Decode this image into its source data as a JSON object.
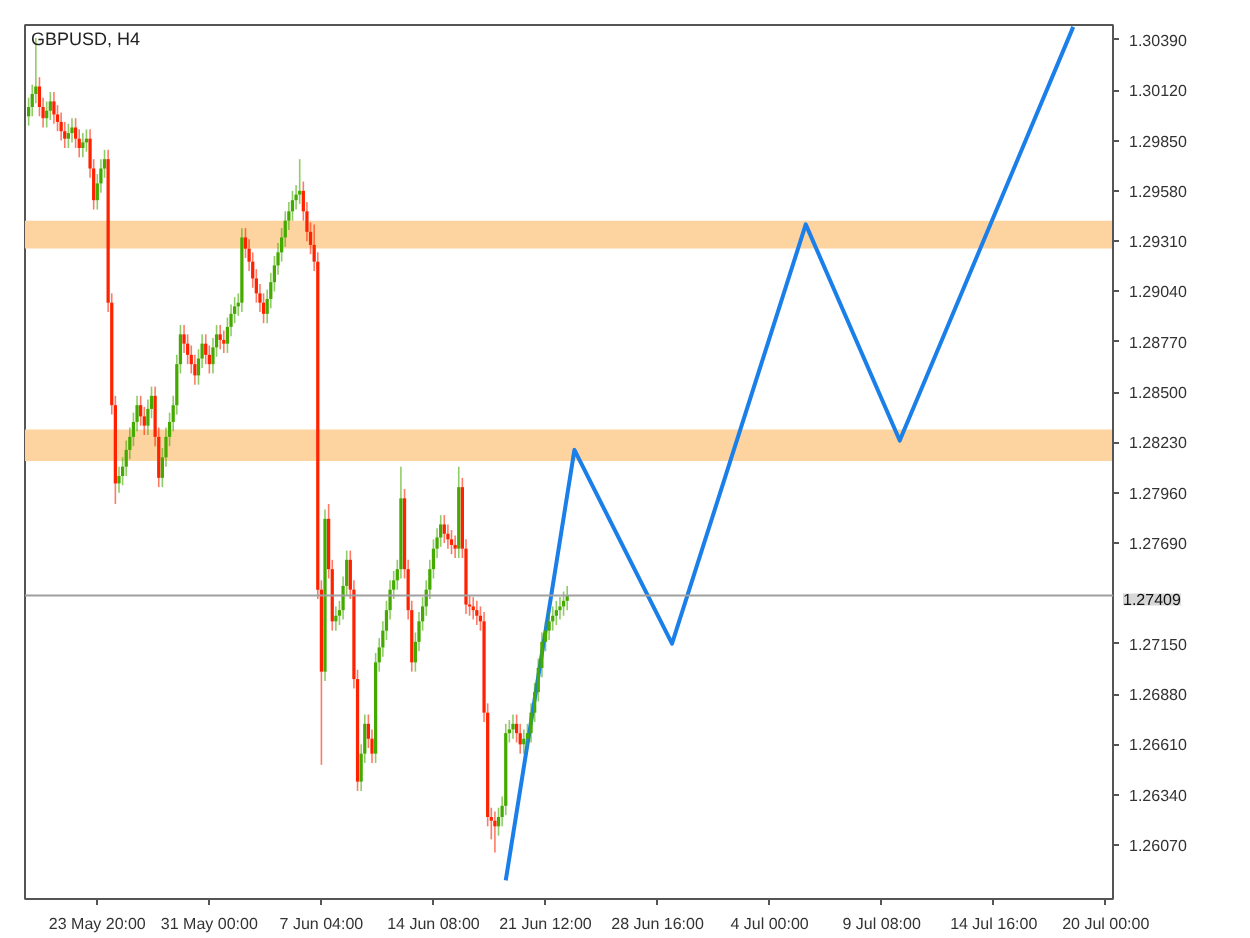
{
  "chart_data": {
    "type": "candlestick",
    "title": "GBPUSD, H4",
    "categories": [
      null,
      null,
      null,
      null,
      null,
      null,
      null,
      null,
      null,
      null,
      null,
      null,
      null,
      null,
      null,
      null,
      null,
      null,
      null,
      "23 May 20:00",
      null,
      null,
      null,
      null,
      null,
      null,
      null,
      null,
      null,
      null,
      null,
      null,
      null,
      null,
      null,
      null,
      null,
      null,
      null,
      null,
      null,
      null,
      null,
      null,
      null,
      null,
      null,
      null,
      null,
      null,
      "31 May 00:00",
      null,
      null,
      null,
      null,
      null,
      null,
      null,
      null,
      null,
      null,
      null,
      null,
      null,
      null,
      null,
      null,
      null,
      null,
      null,
      null,
      null,
      null,
      null,
      null,
      null,
      null,
      null,
      null,
      null,
      null,
      "7 Jun 04:00",
      null,
      null,
      null,
      null,
      null,
      null,
      null,
      null,
      null,
      null,
      null,
      null,
      null,
      null,
      null,
      null,
      null,
      null,
      null,
      null,
      null,
      null,
      null,
      null,
      null,
      null,
      null,
      null,
      null,
      null,
      "14 Jun 08:00",
      null,
      null,
      null,
      null,
      null,
      null,
      null,
      null,
      null,
      null,
      null,
      null,
      null,
      null,
      null,
      null,
      null,
      null,
      null,
      null,
      null,
      null,
      null,
      null,
      null,
      null,
      null,
      null,
      null,
      null,
      "21 Jun 12:00",
      null,
      null,
      null,
      null,
      null,
      null,
      null,
      null,
      null,
      null,
      null,
      null,
      null,
      null,
      null,
      null,
      null,
      null,
      null,
      null,
      null,
      null,
      null,
      null,
      null,
      null,
      null,
      null,
      null,
      null,
      "28 Jun 16:00",
      null,
      null,
      null,
      null,
      null,
      null,
      null,
      null,
      null,
      null,
      null,
      null,
      null,
      null,
      null,
      null,
      null,
      null,
      null,
      null,
      null,
      null,
      null,
      null,
      null,
      null,
      null,
      null,
      null,
      null,
      "4 Jul 00:00",
      null,
      null,
      null,
      null,
      null,
      null,
      null,
      null,
      null,
      null,
      null,
      null,
      null,
      null,
      null,
      null,
      null,
      null,
      null,
      null,
      null,
      null,
      null,
      null,
      null,
      null,
      null,
      null,
      null,
      null,
      "9 Jul 08:00",
      null,
      null,
      null,
      null,
      null,
      null,
      null,
      null,
      null,
      null,
      null,
      null,
      null,
      null,
      null,
      null,
      null,
      null,
      null,
      null,
      null,
      null,
      null,
      null,
      null,
      null,
      null,
      null,
      null,
      null,
      "14 Jul 16:00",
      null,
      null,
      null,
      null,
      null,
      null,
      null,
      null,
      null,
      null,
      null,
      null,
      null,
      null,
      null,
      null,
      null,
      null,
      null,
      null,
      null,
      null,
      null,
      null,
      null,
      null,
      null,
      null,
      null,
      null,
      "20 Jul 00:00",
      null
    ],
    "ohlc": [
      [
        1.2998,
        1.3008,
        1.2993,
        1.3003
      ],
      [
        1.3003,
        1.3015,
        1.2998,
        1.301
      ],
      [
        1.301,
        1.304,
        1.3005,
        1.3014
      ],
      [
        1.3014,
        1.3019,
        1.2998,
        1.3003
      ],
      [
        1.3003,
        1.3008,
        1.2992,
        1.2997
      ],
      [
        1.2997,
        1.3006,
        1.2992,
        1.3001
      ],
      [
        1.3001,
        1.3011,
        1.2996,
        1.3006
      ],
      [
        1.3006,
        1.3011,
        1.2994,
        1.2999
      ],
      [
        1.2999,
        1.3004,
        1.299,
        1.2995
      ],
      [
        1.2995,
        1.3,
        1.2985,
        1.299
      ],
      [
        1.299,
        1.2995,
        1.2981,
        1.2986
      ],
      [
        1.2986,
        1.2994,
        1.2981,
        1.2989
      ],
      [
        1.2989,
        1.2997,
        1.2984,
        1.2992
      ],
      [
        1.2992,
        1.2997,
        1.2981,
        1.2986
      ],
      [
        1.2986,
        1.2991,
        1.2976,
        1.2981
      ],
      [
        1.2981,
        1.2989,
        1.2976,
        1.2984
      ],
      [
        1.2984,
        1.2991,
        1.2979,
        1.2986
      ],
      [
        1.2986,
        1.2991,
        1.2965,
        1.297
      ],
      [
        1.297,
        1.2975,
        1.2948,
        1.2953
      ],
      [
        1.2953,
        1.2967,
        1.2948,
        1.2962
      ],
      [
        1.2962,
        1.2975,
        1.2957,
        1.297
      ],
      [
        1.297,
        1.298,
        1.2965,
        1.2975
      ],
      [
        1.2975,
        1.298,
        1.2893,
        1.2898
      ],
      [
        1.2898,
        1.2903,
        1.2838,
        1.2843
      ],
      [
        1.2843,
        1.2848,
        1.279,
        1.2801
      ],
      [
        1.2801,
        1.281,
        1.2796,
        1.2805
      ],
      [
        1.2805,
        1.2815,
        1.28,
        1.281
      ],
      [
        1.281,
        1.2824,
        1.2805,
        1.2819
      ],
      [
        1.2819,
        1.2831,
        1.2814,
        1.2826
      ],
      [
        1.2826,
        1.2839,
        1.2821,
        1.2834
      ],
      [
        1.2834,
        1.2848,
        1.2829,
        1.2843
      ],
      [
        1.2843,
        1.2848,
        1.2832,
        1.2837
      ],
      [
        1.2837,
        1.2842,
        1.2827,
        1.2832
      ],
      [
        1.2832,
        1.2846,
        1.2827,
        1.2841
      ],
      [
        1.2841,
        1.2853,
        1.2836,
        1.2848
      ],
      [
        1.2848,
        1.2853,
        1.2821,
        1.2826
      ],
      [
        1.2826,
        1.2831,
        1.2799,
        1.2804
      ],
      [
        1.2804,
        1.282,
        1.2799,
        1.2815
      ],
      [
        1.2815,
        1.2831,
        1.281,
        1.2826
      ],
      [
        1.2826,
        1.2839,
        1.2821,
        1.2834
      ],
      [
        1.2834,
        1.2848,
        1.2829,
        1.2843
      ],
      [
        1.2843,
        1.287,
        1.2838,
        1.2865
      ],
      [
        1.2865,
        1.2886,
        1.286,
        1.2881
      ],
      [
        1.2881,
        1.2886,
        1.2871,
        1.2876
      ],
      [
        1.2876,
        1.2881,
        1.2865,
        1.287
      ],
      [
        1.287,
        1.2875,
        1.286,
        1.2865
      ],
      [
        1.2865,
        1.287,
        1.2854,
        1.2859
      ],
      [
        1.2859,
        1.2873,
        1.2854,
        1.2868
      ],
      [
        1.2868,
        1.2881,
        1.2863,
        1.2876
      ],
      [
        1.2876,
        1.2881,
        1.2865,
        1.287
      ],
      [
        1.287,
        1.2875,
        1.286,
        1.2865
      ],
      [
        1.2865,
        1.2879,
        1.286,
        1.2874
      ],
      [
        1.2874,
        1.2886,
        1.2869,
        1.2881
      ],
      [
        1.2881,
        1.2886,
        1.2873,
        1.2878
      ],
      [
        1.2878,
        1.2883,
        1.2871,
        1.2876
      ],
      [
        1.2876,
        1.289,
        1.2871,
        1.2885
      ],
      [
        1.2885,
        1.2897,
        1.288,
        1.2892
      ],
      [
        1.2892,
        1.2901,
        1.2887,
        1.2896
      ],
      [
        1.2896,
        1.2903,
        1.2891,
        1.2898
      ],
      [
        1.2898,
        1.2938,
        1.2893,
        1.2933
      ],
      [
        1.2933,
        1.2938,
        1.2922,
        1.2927
      ],
      [
        1.2927,
        1.2932,
        1.2915,
        1.292
      ],
      [
        1.292,
        1.2925,
        1.2906,
        1.2911
      ],
      [
        1.2911,
        1.2916,
        1.2898,
        1.2903
      ],
      [
        1.2903,
        1.2908,
        1.2893,
        1.2898
      ],
      [
        1.2898,
        1.2903,
        1.2887,
        1.2892
      ],
      [
        1.2892,
        1.2905,
        1.2887,
        1.29
      ],
      [
        1.29,
        1.2914,
        1.2895,
        1.2909
      ],
      [
        1.2909,
        1.2923,
        1.2904,
        1.2918
      ],
      [
        1.2918,
        1.293,
        1.2913,
        1.2925
      ],
      [
        1.2925,
        1.2938,
        1.292,
        1.2933
      ],
      [
        1.2933,
        1.2947,
        1.2928,
        1.2942
      ],
      [
        1.2942,
        1.2952,
        1.2937,
        1.2947
      ],
      [
        1.2947,
        1.2958,
        1.2942,
        1.2953
      ],
      [
        1.2953,
        1.2961,
        1.2948,
        1.2956
      ],
      [
        1.2956,
        1.2975,
        1.2951,
        1.2958
      ],
      [
        1.2958,
        1.2963,
        1.2942,
        1.2947
      ],
      [
        1.2947,
        1.2952,
        1.2931,
        1.2936
      ],
      [
        1.2936,
        1.2941,
        1.2924,
        1.2929
      ],
      [
        1.2929,
        1.294,
        1.2915,
        1.292
      ],
      [
        1.292,
        1.2925,
        1.2739,
        1.2744
      ],
      [
        1.2744,
        1.2749,
        1.265,
        1.27
      ],
      [
        1.27,
        1.2787,
        1.2695,
        1.2782
      ],
      [
        1.2782,
        1.279,
        1.275,
        1.2755
      ],
      [
        1.2755,
        1.276,
        1.2722,
        1.2727
      ],
      [
        1.2727,
        1.2735,
        1.2722,
        1.273
      ],
      [
        1.273,
        1.2738,
        1.2725,
        1.2733
      ],
      [
        1.2733,
        1.2751,
        1.2728,
        1.2746
      ],
      [
        1.2746,
        1.2765,
        1.2741,
        1.276
      ],
      [
        1.276,
        1.2765,
        1.2739,
        1.2744
      ],
      [
        1.2744,
        1.2749,
        1.2691,
        1.2696
      ],
      [
        1.2696,
        1.2701,
        1.2636,
        1.2641
      ],
      [
        1.2641,
        1.2661,
        1.2636,
        1.2656
      ],
      [
        1.2656,
        1.2677,
        1.2651,
        1.2672
      ],
      [
        1.2672,
        1.2677,
        1.2659,
        1.2664
      ],
      [
        1.2664,
        1.2669,
        1.2651,
        1.2656
      ],
      [
        1.2656,
        1.271,
        1.2651,
        1.2705
      ],
      [
        1.2705,
        1.2718,
        1.27,
        1.2713
      ],
      [
        1.2713,
        1.2727,
        1.2708,
        1.2722
      ],
      [
        1.2722,
        1.2738,
        1.2717,
        1.2733
      ],
      [
        1.2733,
        1.2749,
        1.2728,
        1.2744
      ],
      [
        1.2744,
        1.2754,
        1.2739,
        1.2749
      ],
      [
        1.2749,
        1.276,
        1.2744,
        1.2755
      ],
      [
        1.2755,
        1.281,
        1.275,
        1.2793
      ],
      [
        1.2793,
        1.2798,
        1.275,
        1.2755
      ],
      [
        1.2755,
        1.276,
        1.2728,
        1.2733
      ],
      [
        1.2733,
        1.2738,
        1.27,
        1.2705
      ],
      [
        1.2705,
        1.2721,
        1.27,
        1.2716
      ],
      [
        1.2716,
        1.2732,
        1.2711,
        1.2727
      ],
      [
        1.2727,
        1.274,
        1.2722,
        1.2735
      ],
      [
        1.2735,
        1.2749,
        1.273,
        1.2744
      ],
      [
        1.2744,
        1.276,
        1.2739,
        1.2755
      ],
      [
        1.2755,
        1.2771,
        1.275,
        1.2766
      ],
      [
        1.2766,
        1.2777,
        1.2761,
        1.2772
      ],
      [
        1.2772,
        1.2784,
        1.2767,
        1.2779
      ],
      [
        1.2779,
        1.2784,
        1.2769,
        1.2774
      ],
      [
        1.2774,
        1.2779,
        1.2766,
        1.2771
      ],
      [
        1.2771,
        1.2776,
        1.2763,
        1.2768
      ],
      [
        1.2768,
        1.2773,
        1.2761,
        1.2766
      ],
      [
        1.2766,
        1.281,
        1.2761,
        1.2799
      ],
      [
        1.2799,
        1.2804,
        1.2761,
        1.2766
      ],
      [
        1.2766,
        1.2771,
        1.2731,
        1.2736
      ],
      [
        1.2736,
        1.2741,
        1.273,
        1.2735
      ],
      [
        1.2735,
        1.274,
        1.2728,
        1.2733
      ],
      [
        1.2733,
        1.2738,
        1.2725,
        1.273
      ],
      [
        1.273,
        1.2735,
        1.2722,
        1.2727
      ],
      [
        1.2727,
        1.2732,
        1.2673,
        1.2678
      ],
      [
        1.2678,
        1.2683,
        1.2617,
        1.2622
      ],
      [
        1.2622,
        1.2627,
        1.261,
        1.262
      ],
      [
        1.262,
        1.2625,
        1.2603,
        1.2617
      ],
      [
        1.2617,
        1.2627,
        1.2612,
        1.2622
      ],
      [
        1.2622,
        1.2633,
        1.2617,
        1.2628
      ],
      [
        1.2628,
        1.2672,
        1.2623,
        1.2667
      ],
      [
        1.2667,
        1.2674,
        1.2662,
        1.2669
      ],
      [
        1.2669,
        1.2677,
        1.2664,
        1.2672
      ],
      [
        1.2672,
        1.2677,
        1.2662,
        1.2667
      ],
      [
        1.2667,
        1.2672,
        1.2656,
        1.2661
      ],
      [
        1.2661,
        1.2669,
        1.2656,
        1.2664
      ],
      [
        1.2664,
        1.2672,
        1.2659,
        1.2667
      ],
      [
        1.2667,
        1.2683,
        1.2662,
        1.2678
      ],
      [
        1.2678,
        1.2694,
        1.2673,
        1.2689
      ],
      [
        1.2689,
        1.2707,
        1.2684,
        1.2702
      ],
      [
        1.2702,
        1.2721,
        1.2697,
        1.2716
      ],
      [
        1.2716,
        1.2727,
        1.2711,
        1.2722
      ],
      [
        1.2722,
        1.2732,
        1.2717,
        1.2727
      ],
      [
        1.2727,
        1.2735,
        1.2722,
        1.273
      ],
      [
        1.273,
        1.2738,
        1.2725,
        1.2733
      ],
      [
        1.2733,
        1.274,
        1.2728,
        1.2735
      ],
      [
        1.2735,
        1.2743,
        1.273,
        1.2738
      ],
      [
        1.2738,
        1.2746,
        1.2733,
        1.2741
      ],
      null,
      null,
      null,
      null,
      null,
      null,
      null,
      null,
      null,
      null,
      null,
      null,
      null,
      null,
      null,
      null,
      null,
      null,
      null,
      null,
      null,
      null,
      null,
      null,
      null,
      null,
      null,
      null,
      null,
      null,
      null,
      null,
      null,
      null,
      null,
      null,
      null,
      null,
      null,
      null,
      null,
      null,
      null,
      null,
      null,
      null,
      null,
      null,
      null,
      null,
      null,
      null,
      null,
      null,
      null,
      null,
      null,
      null,
      null,
      null,
      null,
      null,
      null,
      null,
      null,
      null,
      null,
      null,
      null,
      null,
      null,
      null,
      null,
      null,
      null,
      null,
      null,
      null,
      null,
      null,
      null,
      null,
      null,
      null,
      null,
      null,
      null,
      null,
      null,
      null,
      null,
      null,
      null,
      null,
      null,
      null,
      null,
      null,
      null,
      null,
      null,
      null,
      null,
      null,
      null,
      null,
      null,
      null,
      null,
      null,
      null,
      null,
      null,
      null,
      null,
      null,
      null,
      null,
      null,
      null,
      null,
      null,
      null,
      null,
      null,
      null,
      null,
      null,
      null,
      null,
      null,
      null,
      null,
      null,
      null,
      null,
      null,
      null,
      null,
      null,
      null,
      null,
      null,
      null,
      null,
      null,
      null,
      null,
      null,
      null
    ],
    "colors": [
      "#44aa00",
      "#44aa00",
      "#44aa00",
      "#ff2200",
      "#ff2200",
      "#44aa00",
      "#44aa00",
      "#ff2200",
      "#ff2200",
      "#ff2200",
      "#ff2200",
      "#44aa00",
      "#44aa00",
      "#ff2200",
      "#ff2200",
      "#44aa00",
      "#44aa00",
      "#ff2200",
      "#ff2200",
      "#44aa00",
      "#44aa00",
      "#44aa00",
      "#ff2200",
      "#ff2200",
      "#ff2200",
      "#44aa00",
      "#44aa00",
      "#44aa00",
      "#44aa00",
      "#44aa00",
      "#44aa00",
      "#ff2200",
      "#ff2200",
      "#44aa00",
      "#44aa00",
      "#ff2200",
      "#ff2200",
      "#44aa00",
      "#44aa00",
      "#44aa00",
      "#44aa00",
      "#44aa00",
      "#44aa00",
      "#ff2200",
      "#ff2200",
      "#ff2200",
      "#ff2200",
      "#44aa00",
      "#44aa00",
      "#ff2200",
      "#ff2200",
      "#44aa00",
      "#44aa00",
      "#ff2200",
      "#ff2200",
      "#44aa00",
      "#44aa00",
      "#44aa00",
      "#44aa00",
      "#44aa00",
      "#ff2200",
      "#ff2200",
      "#ff2200",
      "#ff2200",
      "#ff2200",
      "#ff2200",
      "#44aa00",
      "#44aa00",
      "#44aa00",
      "#44aa00",
      "#44aa00",
      "#44aa00",
      "#44aa00",
      "#44aa00",
      "#44aa00",
      "#44aa00",
      "#ff2200",
      "#ff2200",
      "#ff2200",
      "#ff2200",
      "#ff2200",
      "#ff2200",
      "#44aa00",
      "#ff2200",
      "#ff2200",
      "#44aa00",
      "#44aa00",
      "#44aa00",
      "#44aa00",
      "#ff2200",
      "#ff2200",
      "#ff2200",
      "#44aa00",
      "#44aa00",
      "#ff2200",
      "#ff2200",
      "#44aa00",
      "#44aa00",
      "#44aa00",
      "#44aa00",
      "#44aa00",
      "#44aa00",
      "#44aa00",
      "#44aa00",
      "#ff2200",
      "#ff2200",
      "#ff2200",
      "#44aa00",
      "#44aa00",
      "#44aa00",
      "#44aa00",
      "#44aa00",
      "#44aa00",
      "#44aa00",
      "#44aa00",
      "#ff2200",
      "#ff2200",
      "#ff2200",
      "#ff2200",
      "#44aa00",
      "#ff2200",
      "#ff2200",
      "#ff2200",
      "#ff2200",
      "#ff2200",
      "#ff2200",
      "#ff2200",
      "#ff2200",
      "#ff2200",
      "#ff2200",
      "#44aa00",
      "#44aa00",
      "#44aa00",
      "#44aa00",
      "#44aa00",
      "#ff2200",
      "#ff2200",
      "#44aa00",
      "#44aa00",
      "#44aa00",
      "#44aa00",
      "#44aa00",
      "#44aa00",
      "#44aa00",
      "#44aa00",
      "#44aa00",
      "#44aa00",
      "#44aa00",
      "#44aa00",
      "#44aa00",
      null,
      null,
      null,
      null,
      null,
      null,
      null,
      null,
      null,
      null,
      null,
      null,
      null,
      null,
      null,
      null,
      null,
      null,
      null,
      null,
      null,
      null,
      null,
      null,
      null,
      null,
      null,
      null,
      null,
      null,
      null,
      null,
      null,
      null,
      null,
      null,
      null,
      null,
      null,
      null,
      null,
      null,
      null,
      null,
      null,
      null,
      null,
      null,
      null,
      null,
      null,
      null,
      null,
      null,
      null,
      null,
      null,
      null,
      null,
      null,
      null,
      null,
      null,
      null,
      null,
      null,
      null,
      null,
      null,
      null,
      null,
      null,
      null,
      null,
      null,
      null,
      null,
      null,
      null,
      null,
      null,
      null,
      null,
      null,
      null,
      null,
      null,
      null,
      null,
      null,
      null,
      null,
      null,
      null,
      null,
      null,
      null,
      null,
      null,
      null,
      null,
      null,
      null,
      null,
      null,
      null,
      null,
      null,
      null,
      null,
      null,
      null,
      null,
      null,
      null,
      null,
      null,
      null,
      null,
      null,
      null,
      null,
      null,
      null,
      null,
      null,
      null,
      null,
      null,
      null,
      null,
      null,
      null,
      null,
      null,
      null,
      null,
      null,
      null,
      null,
      null,
      null,
      null,
      null,
      null,
      null,
      null,
      null,
      null,
      null
    ],
    "series": [
      {
        "type": "line",
        "color": "#1a7fe8",
        "values": [
          null,
          null,
          null,
          null,
          null,
          null,
          null,
          null,
          null,
          null,
          null,
          null,
          null,
          null,
          null,
          null,
          null,
          null,
          null,
          null,
          null,
          null,
          null,
          null,
          null,
          null,
          null,
          null,
          null,
          null,
          null,
          null,
          null,
          null,
          null,
          null,
          null,
          null,
          null,
          null,
          null,
          null,
          null,
          null,
          null,
          null,
          null,
          null,
          null,
          null,
          null,
          null,
          null,
          null,
          null,
          null,
          null,
          null,
          null,
          null,
          null,
          null,
          null,
          null,
          null,
          null,
          null,
          null,
          null,
          null,
          null,
          null,
          null,
          null,
          null,
          null,
          null,
          null,
          null,
          null,
          null,
          null,
          null,
          null,
          null,
          null,
          null,
          null,
          null,
          null,
          null,
          null,
          null,
          null,
          null,
          null,
          null,
          null,
          null,
          null,
          null,
          null,
          null,
          null,
          null,
          null,
          null,
          null,
          null,
          null,
          null,
          null,
          null,
          null,
          null,
          null,
          null,
          null,
          null,
          null,
          null,
          null,
          null,
          null,
          null,
          null,
          null,
          null,
          null,
          null,
          null,
          null,
          1.2588,
          null,
          null,
          null,
          null,
          null,
          null,
          null,
          null,
          null,
          null,
          null,
          null,
          null,
          null,
          null,
          null,
          null,
          null,
          1.2819,
          null,
          null,
          null,
          null,
          null,
          null,
          null,
          null,
          null,
          null,
          null,
          null,
          null,
          null,
          null,
          null,
          null,
          null,
          null,
          null,
          null,
          null,
          null,
          null,
          null,
          null,
          1.2715,
          null,
          null,
          null,
          null,
          null,
          null,
          null,
          null,
          null,
          null,
          null,
          null,
          null,
          null,
          null,
          null,
          null,
          null,
          null,
          null,
          null,
          null,
          null,
          null,
          null,
          null,
          null,
          null,
          null,
          null,
          null,
          null,
          null,
          null,
          null,
          null,
          1.294,
          null,
          null,
          null,
          null,
          null,
          null,
          null,
          null,
          null,
          null,
          null,
          null,
          null,
          null,
          null,
          null,
          null,
          null,
          null,
          null,
          null,
          null,
          null,
          null,
          null,
          1.2824,
          null,
          null,
          null,
          null,
          null,
          null,
          null,
          null,
          null,
          null,
          null,
          null,
          null,
          null,
          null,
          null,
          null,
          null,
          null,
          null,
          null,
          null,
          null,
          null,
          null,
          null,
          null,
          null,
          null,
          null,
          null,
          null,
          null,
          null,
          null,
          null,
          null,
          null,
          null,
          null,
          null,
          null,
          null,
          null,
          null,
          null,
          null,
          1.3046,
          null,
          null,
          null,
          null,
          null,
          null,
          null,
          null,
          null,
          null
        ]
      }
    ],
    "ylim": [
      1.2578,
      1.3047
    ],
    "yticks": [
      {
        "value": 1.3039,
        "label": "1.30390"
      },
      {
        "value": 1.3012,
        "label": "1.30120"
      },
      {
        "value": 1.2985,
        "label": "1.29850"
      },
      {
        "value": 1.2958,
        "label": "1.29580"
      },
      {
        "value": 1.2931,
        "label": "1.29310"
      },
      {
        "value": 1.2904,
        "label": "1.29040"
      },
      {
        "value": 1.2877,
        "label": "1.28770"
      },
      {
        "value": 1.285,
        "label": "1.28500"
      },
      {
        "value": 1.2823,
        "label": "1.28230"
      },
      {
        "value": 1.2796,
        "label": "1.27960"
      },
      {
        "value": 1.2769,
        "label": "1.27690"
      },
      {
        "value": 1.2715,
        "label": "1.27150"
      },
      {
        "value": 1.2688,
        "label": "1.26880"
      },
      {
        "value": 1.2661,
        "label": "1.26610"
      },
      {
        "value": 1.2634,
        "label": "1.26340"
      },
      {
        "value": 1.2607,
        "label": "1.26070"
      }
    ],
    "ref_lines": [
      {
        "axis": "y",
        "value": 1.27409,
        "label": "1.27409",
        "color": "#a0a0a0"
      }
    ],
    "bands": [
      {
        "axis": "y",
        "from": 1.2927,
        "to": 1.2942,
        "color": "#fdd3a0"
      },
      {
        "axis": "y",
        "from": 1.2813,
        "to": 1.283,
        "color": "#fdd3a0"
      }
    ],
    "grid": false
  }
}
